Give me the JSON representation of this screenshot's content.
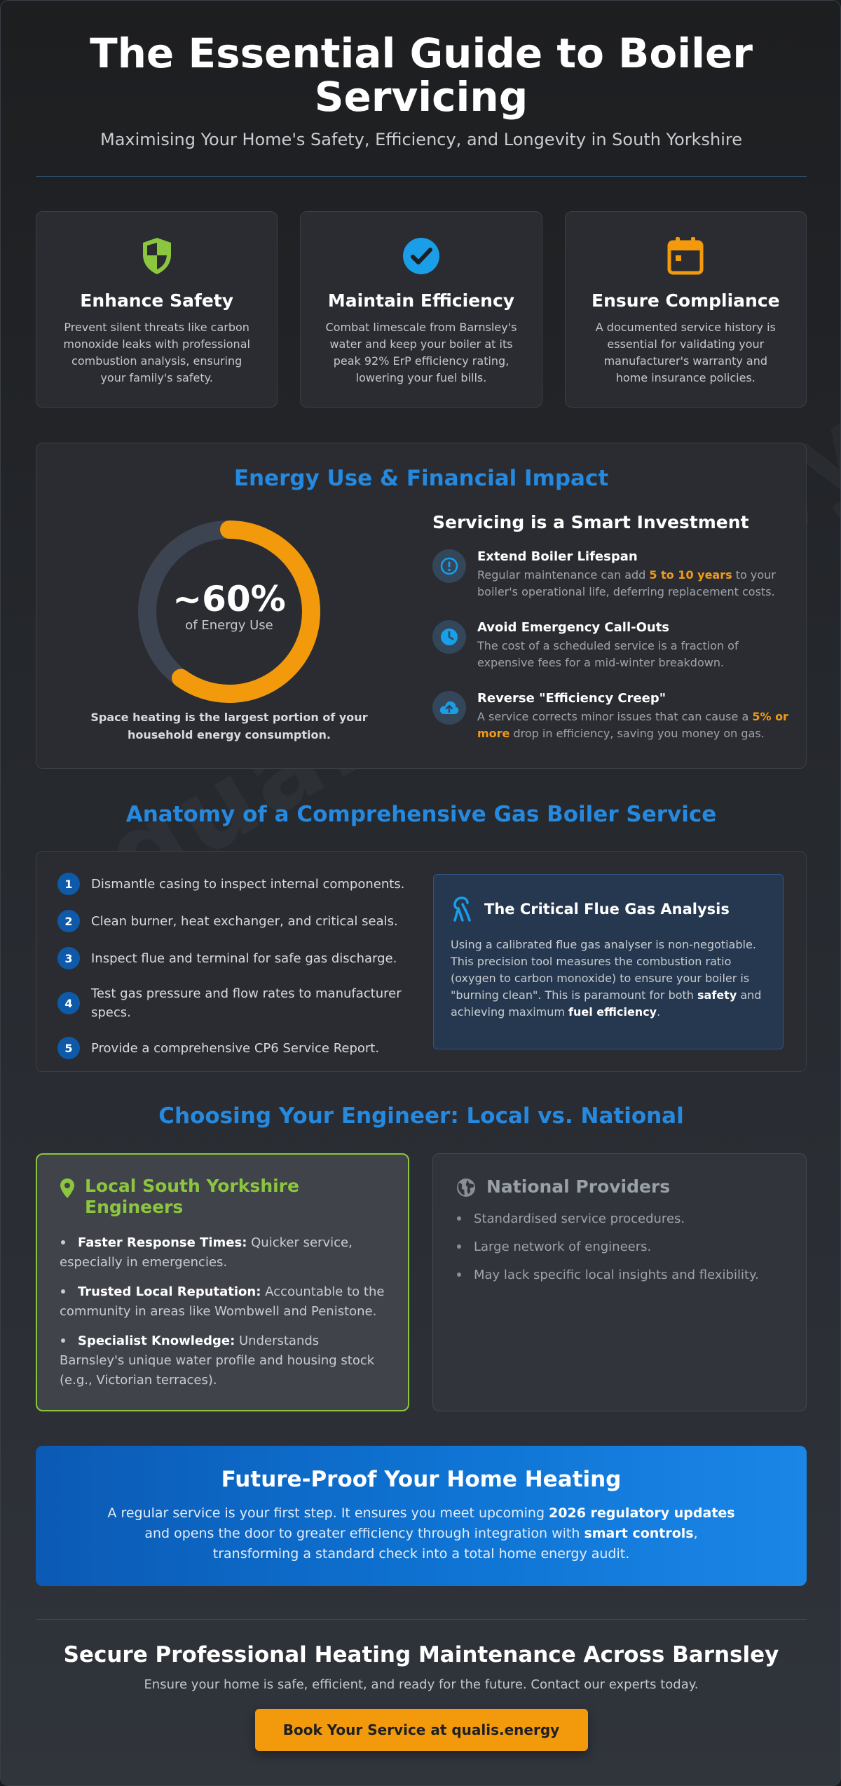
{
  "header": {
    "title": "The Essential Guide to Boiler Servicing",
    "subtitle": "Maximising Your Home's Safety, Efficiency, and Longevity in South Yorkshire"
  },
  "watermark": "qualis.energy",
  "cards": [
    {
      "icon": "shield-icon",
      "title": "Enhance Safety",
      "text": "Prevent silent threats like carbon monoxide leaks with professional combustion analysis, ensuring your family's safety."
    },
    {
      "icon": "check-circle-icon",
      "title": "Maintain Efficiency",
      "text": "Combat limescale from Barnsley's water and keep your boiler at its peak 92% ErP efficiency rating, lowering your fuel bills."
    },
    {
      "icon": "calendar-icon",
      "title": "Ensure Compliance",
      "text": "A documented service history is essential for validating your manufacturer's warranty and home insurance policies."
    }
  ],
  "energy": {
    "title": "Energy Use & Financial Impact",
    "donut_value": "~60%",
    "donut_label": "of Energy Use",
    "donut_fraction": 0.6,
    "donut_caption": "Space heating is the largest portion of your household energy consumption.",
    "invest_title": "Servicing is a Smart Investment",
    "items": [
      {
        "icon": "alert-circle-icon",
        "title": "Extend Boiler Lifespan",
        "pre": "Regular maintenance can add ",
        "hl": "5 to 10 years",
        "post": " to your boiler's operational life, deferring replacement costs."
      },
      {
        "icon": "clock-icon",
        "title": "Avoid Emergency Call-Outs",
        "text": "The cost of a scheduled service is a fraction of expensive fees for a mid-winter breakdown."
      },
      {
        "icon": "cloud-upload-icon",
        "title": "Reverse \"Efficiency Creep\"",
        "pre": "A service corrects minor issues that can cause a ",
        "hl": "5% or more",
        "post": " drop in efficiency, saving you money on gas."
      }
    ]
  },
  "anatomy": {
    "title": "Anatomy of a Comprehensive Gas Boiler Service",
    "steps": [
      {
        "num": "1",
        "text": "Dismantle casing to inspect internal components."
      },
      {
        "num": "2",
        "text": "Clean burner, heat exchanger, and critical seals."
      },
      {
        "num": "3",
        "text": "Inspect flue and terminal for safe gas discharge."
      },
      {
        "num": "4",
        "text": "Test gas pressure and flow rates to manufacturer specs."
      },
      {
        "num": "5",
        "text": "Provide a comprehensive CP6 Service Report."
      }
    ],
    "flue_title": "The Critical Flue Gas Analysis",
    "flue_text_1": "Using a calibrated flue gas analyser is non-negotiable. This precision tool measures the combustion ratio (oxygen to carbon monoxide) to ensure your boiler is \"burning clean\". This is paramount for both ",
    "flue_bold_1": "safety",
    "flue_text_2": " and achieving maximum ",
    "flue_bold_2": "fuel efficiency",
    "flue_text_3": "."
  },
  "choose": {
    "title": "Choosing Your Engineer: Local vs. National",
    "local_title": "Local South Yorkshire Engineers",
    "local_items": [
      {
        "bold": "Faster Response Times:",
        "text": " Quicker service, especially in emergencies."
      },
      {
        "bold": "Trusted Local Reputation:",
        "text": " Accountable to the community in areas like Wombwell and Penistone."
      },
      {
        "bold": "Specialist Knowledge:",
        "text": " Understands Barnsley's unique water profile and housing stock (e.g., Victorian terraces)."
      }
    ],
    "national_title": "National Providers",
    "national_items": [
      "Standardised service procedures.",
      "Large network of engineers.",
      "May lack specific local insights and flexibility."
    ]
  },
  "future": {
    "title": "Future-Proof Your Home Heating",
    "text_1": "A regular service is your first step. It ensures you meet upcoming ",
    "bold_1": "2026 regulatory updates",
    "text_2": " and opens the door to greater efficiency through integration with ",
    "bold_2": "smart controls",
    "text_3": ", transforming a standard check into a total home energy audit."
  },
  "footer": {
    "title": "Secure Professional Heating Maintenance Across Barnsley",
    "text": "Ensure your home is safe, efficient, and ready for the future. Contact our experts today.",
    "button": "Book Your Service at qualis.energy"
  },
  "colors": {
    "accent_blue": "#2589e0",
    "accent_orange": "#f29a0c",
    "accent_green": "#8cc63f"
  }
}
